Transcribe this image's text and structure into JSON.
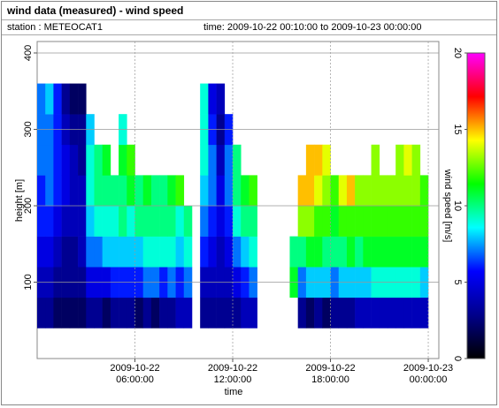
{
  "chart_data": {
    "type": "heatmap",
    "title": "wind data (measured) - wind speed",
    "station": "station : METEOCAT1",
    "time_range": "time: 2009-10-22 00:10:00 to 2009-10-23 00:00:00",
    "x_label": "time",
    "y_label": "height [m]",
    "colorbar_label": "wind speed [m/s]",
    "x": [
      0.25,
      0.75,
      1.25,
      1.75,
      2.25,
      2.75,
      3.25,
      3.75,
      4.25,
      4.75,
      5.25,
      5.75,
      6.25,
      6.75,
      7.25,
      7.75,
      8.25,
      8.75,
      9.25,
      9.75,
      10.25,
      10.75,
      11.25,
      11.75,
      12.25,
      12.75,
      13.25,
      13.75,
      14.25,
      14.75,
      15.25,
      15.75,
      16.25,
      16.75,
      17.25,
      17.75,
      18.25,
      18.75,
      19.25,
      19.75,
      20.25,
      20.75,
      21.25,
      21.75,
      22.25,
      22.75,
      23.25,
      23.75,
      24.25
    ],
    "y": [
      60,
      100,
      140,
      180,
      220,
      260,
      300,
      340
    ],
    "values": [
      [
        3,
        3,
        2,
        2,
        2,
        2,
        3,
        3,
        2,
        3,
        3,
        3,
        2,
        3,
        2,
        3,
        3,
        4,
        4,
        null,
        3,
        3,
        3,
        3,
        3,
        4,
        4,
        null,
        null,
        null,
        null,
        null,
        3,
        2,
        3,
        2,
        3,
        3,
        3,
        4,
        4,
        4,
        4,
        4,
        4,
        4,
        4,
        4,
        null
      ],
      [
        4,
        4,
        3,
        3,
        3,
        3,
        5,
        5,
        5,
        6,
        6,
        6,
        6,
        7,
        7,
        6,
        7,
        6,
        7,
        null,
        4,
        4,
        4,
        4,
        5,
        6,
        7,
        null,
        null,
        null,
        null,
        11,
        7,
        8,
        8,
        8,
        7,
        8,
        8,
        8,
        8,
        9,
        9,
        9,
        9,
        9,
        9,
        8,
        null
      ],
      [
        5,
        5,
        4,
        3,
        3,
        4,
        7,
        7,
        8,
        8,
        8,
        8,
        8,
        9,
        9,
        9,
        9,
        8,
        9,
        null,
        6,
        5,
        4,
        5,
        7,
        8,
        9,
        null,
        null,
        null,
        null,
        10,
        10,
        11,
        11,
        10,
        10,
        10,
        11,
        10,
        11,
        11,
        11,
        11,
        11,
        11,
        11,
        11,
        null
      ],
      [
        6,
        6,
        5,
        4,
        4,
        4,
        8,
        9,
        9,
        9,
        10,
        9,
        10,
        10,
        10,
        10,
        10,
        9,
        10,
        null,
        7,
        6,
        5,
        6,
        9,
        10,
        10,
        null,
        null,
        null,
        null,
        null,
        13,
        13,
        12,
        12,
        11,
        12,
        12,
        12,
        12,
        12,
        12,
        12,
        12,
        12,
        12,
        12,
        null
      ],
      [
        6,
        7,
        6,
        5,
        4,
        4,
        9,
        10,
        10,
        10,
        10,
        11,
        10,
        11,
        10,
        10,
        11,
        12,
        null,
        null,
        8,
        7,
        5,
        7,
        10,
        11,
        12,
        null,
        null,
        null,
        null,
        null,
        15,
        15,
        14,
        13,
        12,
        14,
        15,
        13,
        13,
        13,
        13,
        13,
        13,
        13,
        13,
        12,
        null
      ],
      [
        7,
        7,
        6,
        5,
        4,
        3,
        9,
        10,
        11,
        null,
        11,
        12,
        null,
        null,
        null,
        null,
        null,
        null,
        null,
        null,
        9,
        7,
        4,
        7,
        10,
        null,
        null,
        null,
        null,
        null,
        null,
        null,
        null,
        15,
        15,
        14,
        null,
        null,
        null,
        null,
        null,
        13,
        null,
        null,
        13,
        14,
        13,
        null,
        null
      ],
      [
        7,
        7,
        6,
        4,
        3,
        3,
        8,
        null,
        null,
        null,
        9,
        null,
        null,
        null,
        null,
        null,
        null,
        null,
        null,
        null,
        9,
        6,
        3,
        6,
        null,
        null,
        null,
        null,
        null,
        null,
        null,
        null,
        null,
        null,
        null,
        null,
        null,
        null,
        null,
        null,
        null,
        null,
        null,
        null,
        null,
        null,
        null,
        null,
        null
      ],
      [
        7,
        8,
        6,
        3,
        2,
        2,
        null,
        null,
        null,
        null,
        null,
        null,
        null,
        null,
        null,
        null,
        null,
        null,
        null,
        null,
        9,
        5,
        4,
        null,
        null,
        null,
        null,
        null,
        null,
        null,
        null,
        null,
        null,
        null,
        null,
        null,
        null,
        null,
        null,
        null,
        null,
        null,
        null,
        null,
        null,
        null,
        null,
        null,
        null
      ]
    ],
    "xlim": [
      0,
      24.65
    ],
    "xticks": [
      {
        "value": 6,
        "label": "2009-10-22\n06:00:00"
      },
      {
        "value": 12,
        "label": "2009-10-22\n12:00:00"
      },
      {
        "value": 18,
        "label": "2009-10-22\n18:00:00"
      },
      {
        "value": 24,
        "label": "2009-10-23\n00:00:00"
      }
    ],
    "ylim": [
      0,
      415
    ],
    "yticks": [
      100,
      200,
      300,
      400
    ],
    "zlim": [
      0,
      20
    ],
    "zticks": [
      0,
      5,
      10,
      15,
      20
    ],
    "colorscale": [
      "#000000",
      "#00008b",
      "#0000ff",
      "#00ffff",
      "#00ff00",
      "#ffff00",
      "#ff0000",
      "#ff00ff"
    ],
    "grid": true
  }
}
